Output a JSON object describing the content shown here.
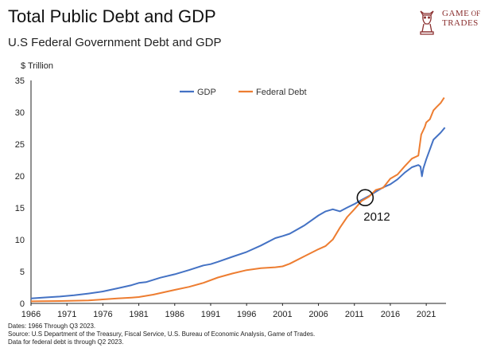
{
  "header": {
    "title": "Total Public Debt and GDP",
    "subtitle": "U.S Federal Government Debt and GDP"
  },
  "logo": {
    "line1": "GAME",
    "line2": "OF",
    "line3": "TRADES",
    "icon": "bull-knight-icon",
    "color": "#8a2e2e"
  },
  "footer": {
    "line1": "Dates: 1966 Through Q3 2023.",
    "line2": "Source: U.S Department of the Treasury, Fiscal Service, U.S. Bureau of Economic Analysis, Game of Trades.",
    "line3": "Data for federal debt is through Q2 2023."
  },
  "chart_data": {
    "type": "line",
    "title": "Total Public Debt and GDP",
    "subtitle": "U.S Federal Government Debt and GDP",
    "ylabel": "$ Trillion",
    "xlabel": "",
    "xlim": [
      1966,
      2023.75
    ],
    "ylim": [
      0,
      35
    ],
    "yticks": [
      0,
      5,
      10,
      15,
      20,
      25,
      30,
      35
    ],
    "xticks": [
      1966,
      1971,
      1976,
      1981,
      1986,
      1991,
      1996,
      2001,
      2006,
      2011,
      2016,
      2021
    ],
    "grid": false,
    "legend": "top-center",
    "annotation": {
      "text": "2012",
      "x": 2012.5,
      "y": 16.6,
      "shape": "circle"
    },
    "series": [
      {
        "name": "GDP",
        "color": "#4472c4",
        "points": [
          [
            1966,
            0.79
          ],
          [
            1968,
            0.94
          ],
          [
            1970,
            1.07
          ],
          [
            1972,
            1.28
          ],
          [
            1974,
            1.55
          ],
          [
            1976,
            1.88
          ],
          [
            1978,
            2.36
          ],
          [
            1980,
            2.86
          ],
          [
            1981,
            3.21
          ],
          [
            1982,
            3.34
          ],
          [
            1984,
            4.04
          ],
          [
            1986,
            4.58
          ],
          [
            1988,
            5.24
          ],
          [
            1990,
            5.96
          ],
          [
            1991,
            6.16
          ],
          [
            1992,
            6.52
          ],
          [
            1994,
            7.31
          ],
          [
            1996,
            8.07
          ],
          [
            1998,
            9.09
          ],
          [
            2000,
            10.25
          ],
          [
            2001,
            10.58
          ],
          [
            2002,
            10.94
          ],
          [
            2004,
            12.21
          ],
          [
            2006,
            13.81
          ],
          [
            2007,
            14.45
          ],
          [
            2008,
            14.77
          ],
          [
            2009,
            14.45
          ],
          [
            2010,
            15.05
          ],
          [
            2011,
            15.6
          ],
          [
            2012,
            16.25
          ],
          [
            2013,
            16.84
          ],
          [
            2014,
            17.55
          ],
          [
            2015,
            18.21
          ],
          [
            2016,
            18.7
          ],
          [
            2017,
            19.48
          ],
          [
            2018,
            20.53
          ],
          [
            2019,
            21.38
          ],
          [
            2019.9,
            21.73
          ],
          [
            2020.2,
            21.48
          ],
          [
            2020.4,
            19.95
          ],
          [
            2020.6,
            21.2
          ],
          [
            2021,
            22.6
          ],
          [
            2022,
            25.7
          ],
          [
            2023,
            26.8
          ],
          [
            2023.6,
            27.6
          ]
        ]
      },
      {
        "name": "Federal Debt",
        "color": "#ed7d31",
        "points": [
          [
            1966,
            0.33
          ],
          [
            1970,
            0.38
          ],
          [
            1974,
            0.48
          ],
          [
            1976,
            0.62
          ],
          [
            1978,
            0.78
          ],
          [
            1980,
            0.91
          ],
          [
            1981,
            1.0
          ],
          [
            1983,
            1.38
          ],
          [
            1986,
            2.12
          ],
          [
            1988,
            2.6
          ],
          [
            1990,
            3.23
          ],
          [
            1992,
            4.06
          ],
          [
            1994,
            4.69
          ],
          [
            1996,
            5.22
          ],
          [
            1998,
            5.53
          ],
          [
            2000,
            5.67
          ],
          [
            2001,
            5.81
          ],
          [
            2002,
            6.23
          ],
          [
            2004,
            7.38
          ],
          [
            2006,
            8.51
          ],
          [
            2007,
            9.01
          ],
          [
            2008,
            10.03
          ],
          [
            2009,
            11.91
          ],
          [
            2010,
            13.56
          ],
          [
            2011,
            14.79
          ],
          [
            2012,
            16.07
          ],
          [
            2013,
            16.74
          ],
          [
            2014,
            17.82
          ],
          [
            2015,
            18.15
          ],
          [
            2016,
            19.57
          ],
          [
            2017,
            20.24
          ],
          [
            2018,
            21.52
          ],
          [
            2019,
            22.72
          ],
          [
            2019.9,
            23.2
          ],
          [
            2020.3,
            26.5
          ],
          [
            2020.8,
            27.7
          ],
          [
            2021,
            28.4
          ],
          [
            2021.5,
            28.9
          ],
          [
            2022,
            30.3
          ],
          [
            2022.5,
            30.9
          ],
          [
            2023,
            31.45
          ],
          [
            2023.5,
            32.3
          ]
        ]
      }
    ]
  }
}
